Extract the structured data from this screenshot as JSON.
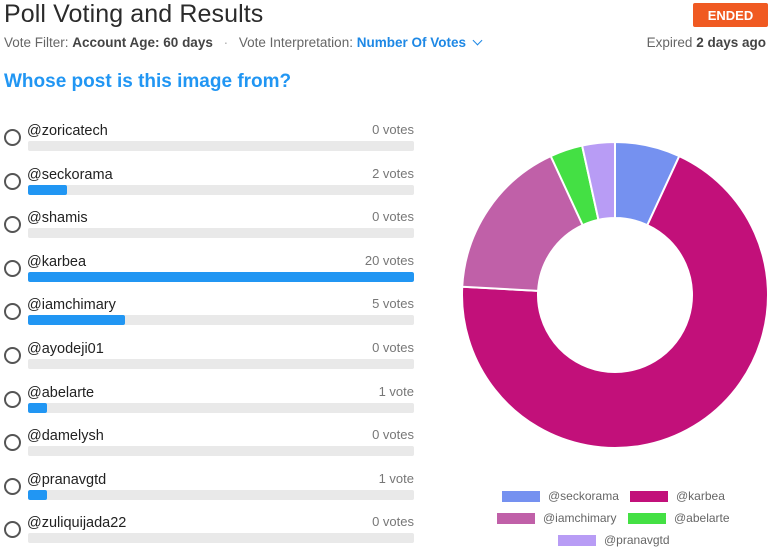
{
  "header": {
    "title": "Poll Voting and Results",
    "status": "ENDED",
    "status_color": "#f05a22",
    "vote_filter_label": "Vote Filter:",
    "vote_filter_value": "Account Age: 60 days",
    "interp_label": "Vote Interpretation:",
    "interp_value": "Number Of Votes",
    "expired_prefix": "Expired",
    "expired_value": "2 days ago"
  },
  "question": "Whose post is this image from?",
  "accent_color": "#2196f3",
  "options": [
    {
      "name": "@zoricatech",
      "votes_label": "0 votes",
      "votes": 0
    },
    {
      "name": "@seckorama",
      "votes_label": "2 votes",
      "votes": 2
    },
    {
      "name": "@shamis",
      "votes_label": "0 votes",
      "votes": 0
    },
    {
      "name": "@karbea",
      "votes_label": "20 votes",
      "votes": 20
    },
    {
      "name": "@iamchimary",
      "votes_label": "5 votes",
      "votes": 5
    },
    {
      "name": "@ayodeji01",
      "votes_label": "0 votes",
      "votes": 0
    },
    {
      "name": "@abelarte",
      "votes_label": "1 vote",
      "votes": 1
    },
    {
      "name": "@damelysh",
      "votes_label": "0 votes",
      "votes": 0
    },
    {
      "name": "@pranavgtd",
      "votes_label": "1 vote",
      "votes": 1
    },
    {
      "name": "@zuliquijada22",
      "votes_label": "0 votes",
      "votes": 0
    }
  ],
  "chart_data": {
    "type": "pie",
    "donut": true,
    "categories": [
      "@seckorama",
      "@karbea",
      "@iamchimary",
      "@abelarte",
      "@pranavgtd"
    ],
    "values": [
      2,
      20,
      5,
      1,
      1
    ],
    "colors": [
      "#7591f0",
      "#c2107a",
      "#c060a8",
      "#44e044",
      "#b89cf5"
    ],
    "legend_position": "bottom"
  }
}
